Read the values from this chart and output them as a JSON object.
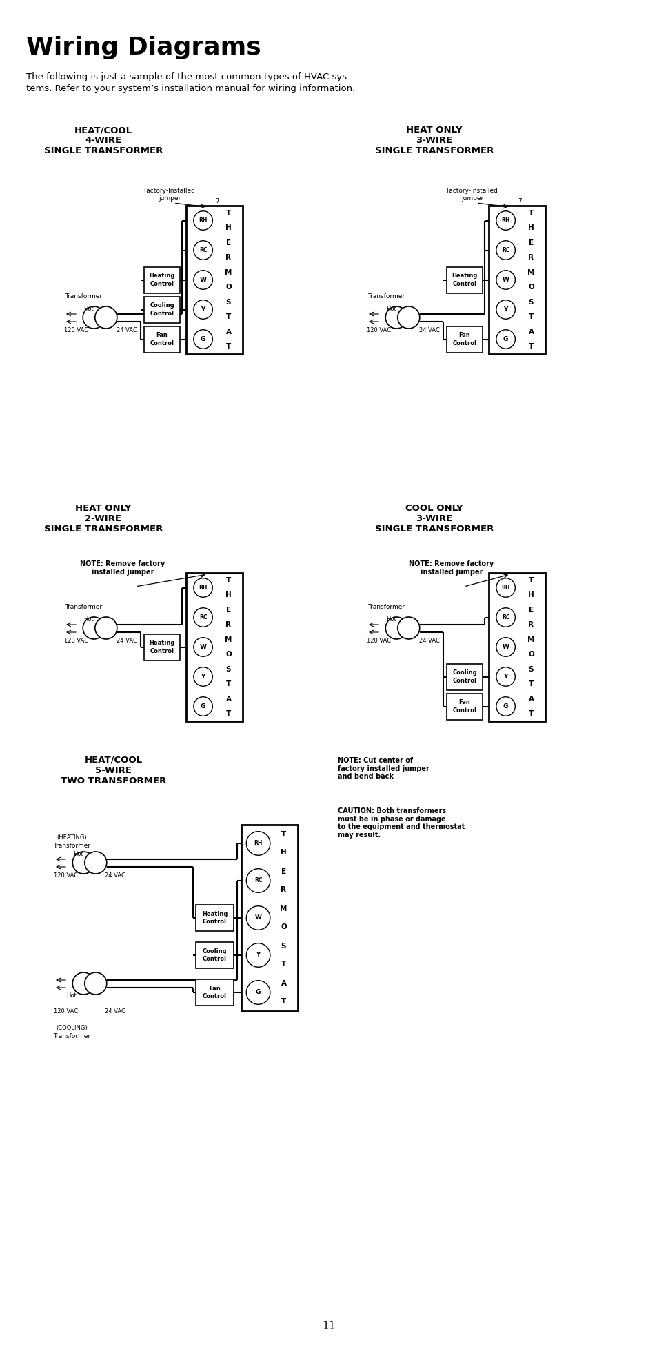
{
  "title": "Wiring Diagrams",
  "subtitle1": "The following is just a sample of the most common types of HVAC sys-",
  "subtitle2": "tems. Refer to your system’s installation manual for wiring information.",
  "page_number": "11",
  "background": "#ffffff"
}
